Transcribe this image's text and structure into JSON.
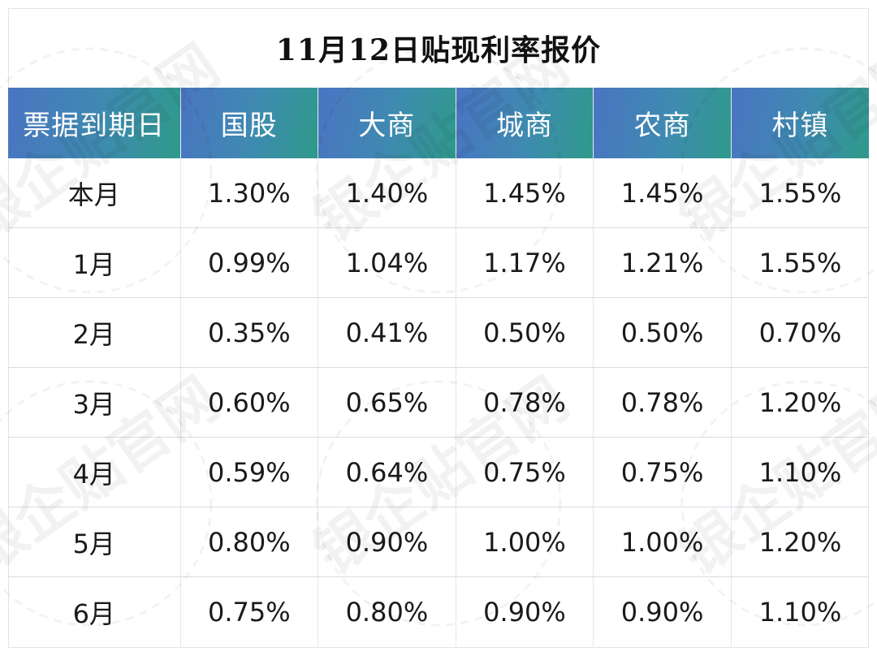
{
  "title": "11月12日贴现利率报价",
  "columns": [
    "票据到期日",
    "国股",
    "大商",
    "城商",
    "农商",
    "村镇"
  ],
  "rows": [
    {
      "label": "本月",
      "values": [
        "1.30%",
        "1.40%",
        "1.45%",
        "1.45%",
        "1.55%"
      ]
    },
    {
      "label": "1月",
      "values": [
        "0.99%",
        "1.04%",
        "1.17%",
        "1.21%",
        "1.55%"
      ]
    },
    {
      "label": "2月",
      "values": [
        "0.35%",
        "0.41%",
        "0.50%",
        "0.50%",
        "0.70%"
      ]
    },
    {
      "label": "3月",
      "values": [
        "0.60%",
        "0.65%",
        "0.78%",
        "0.78%",
        "1.20%"
      ]
    },
    {
      "label": "4月",
      "values": [
        "0.59%",
        "0.64%",
        "0.75%",
        "0.75%",
        "1.10%"
      ]
    },
    {
      "label": "5月",
      "values": [
        "0.80%",
        "0.90%",
        "1.00%",
        "1.00%",
        "1.20%"
      ]
    },
    {
      "label": "6月",
      "values": [
        "0.75%",
        "0.80%",
        "0.90%",
        "0.90%",
        "1.10%"
      ]
    }
  ],
  "watermark": {
    "text": "银企贴官网"
  },
  "colors": {
    "header_start": "#4a74c2",
    "header_end": "#2f9a8a",
    "text": "#1a1a1a"
  }
}
